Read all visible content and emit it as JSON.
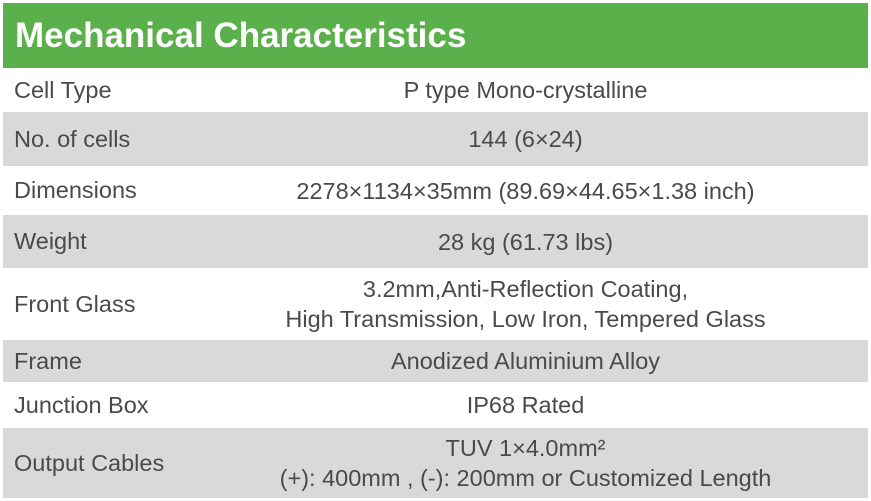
{
  "title": "Mechanical Characteristics",
  "rows": [
    {
      "label": "Cell  Type",
      "value": [
        "P type Mono-crystalline"
      ]
    },
    {
      "label": "No. of cells",
      "value": [
        "144 (6×24)"
      ]
    },
    {
      "label": "Dimensions",
      "value": [
        "2278×1134×35mm (89.69×44.65×1.38 inch)"
      ]
    },
    {
      "label": "Weight",
      "value": [
        "28 kg (61.73 lbs)"
      ]
    },
    {
      "label": "Front Glass",
      "value": [
        "3.2mm,Anti-Reflection Coating,",
        "High Transmission, Low Iron, Tempered Glass"
      ]
    },
    {
      "label": "Frame",
      "value": [
        "Anodized Aluminium Alloy"
      ]
    },
    {
      "label": "Junction Box",
      "value": [
        "IP68 Rated"
      ]
    },
    {
      "label": "Output Cables",
      "value": [
        "TUV  1×4.0mm²",
        "(+): 400mm , (-): 200mm or Customized Length"
      ]
    }
  ]
}
